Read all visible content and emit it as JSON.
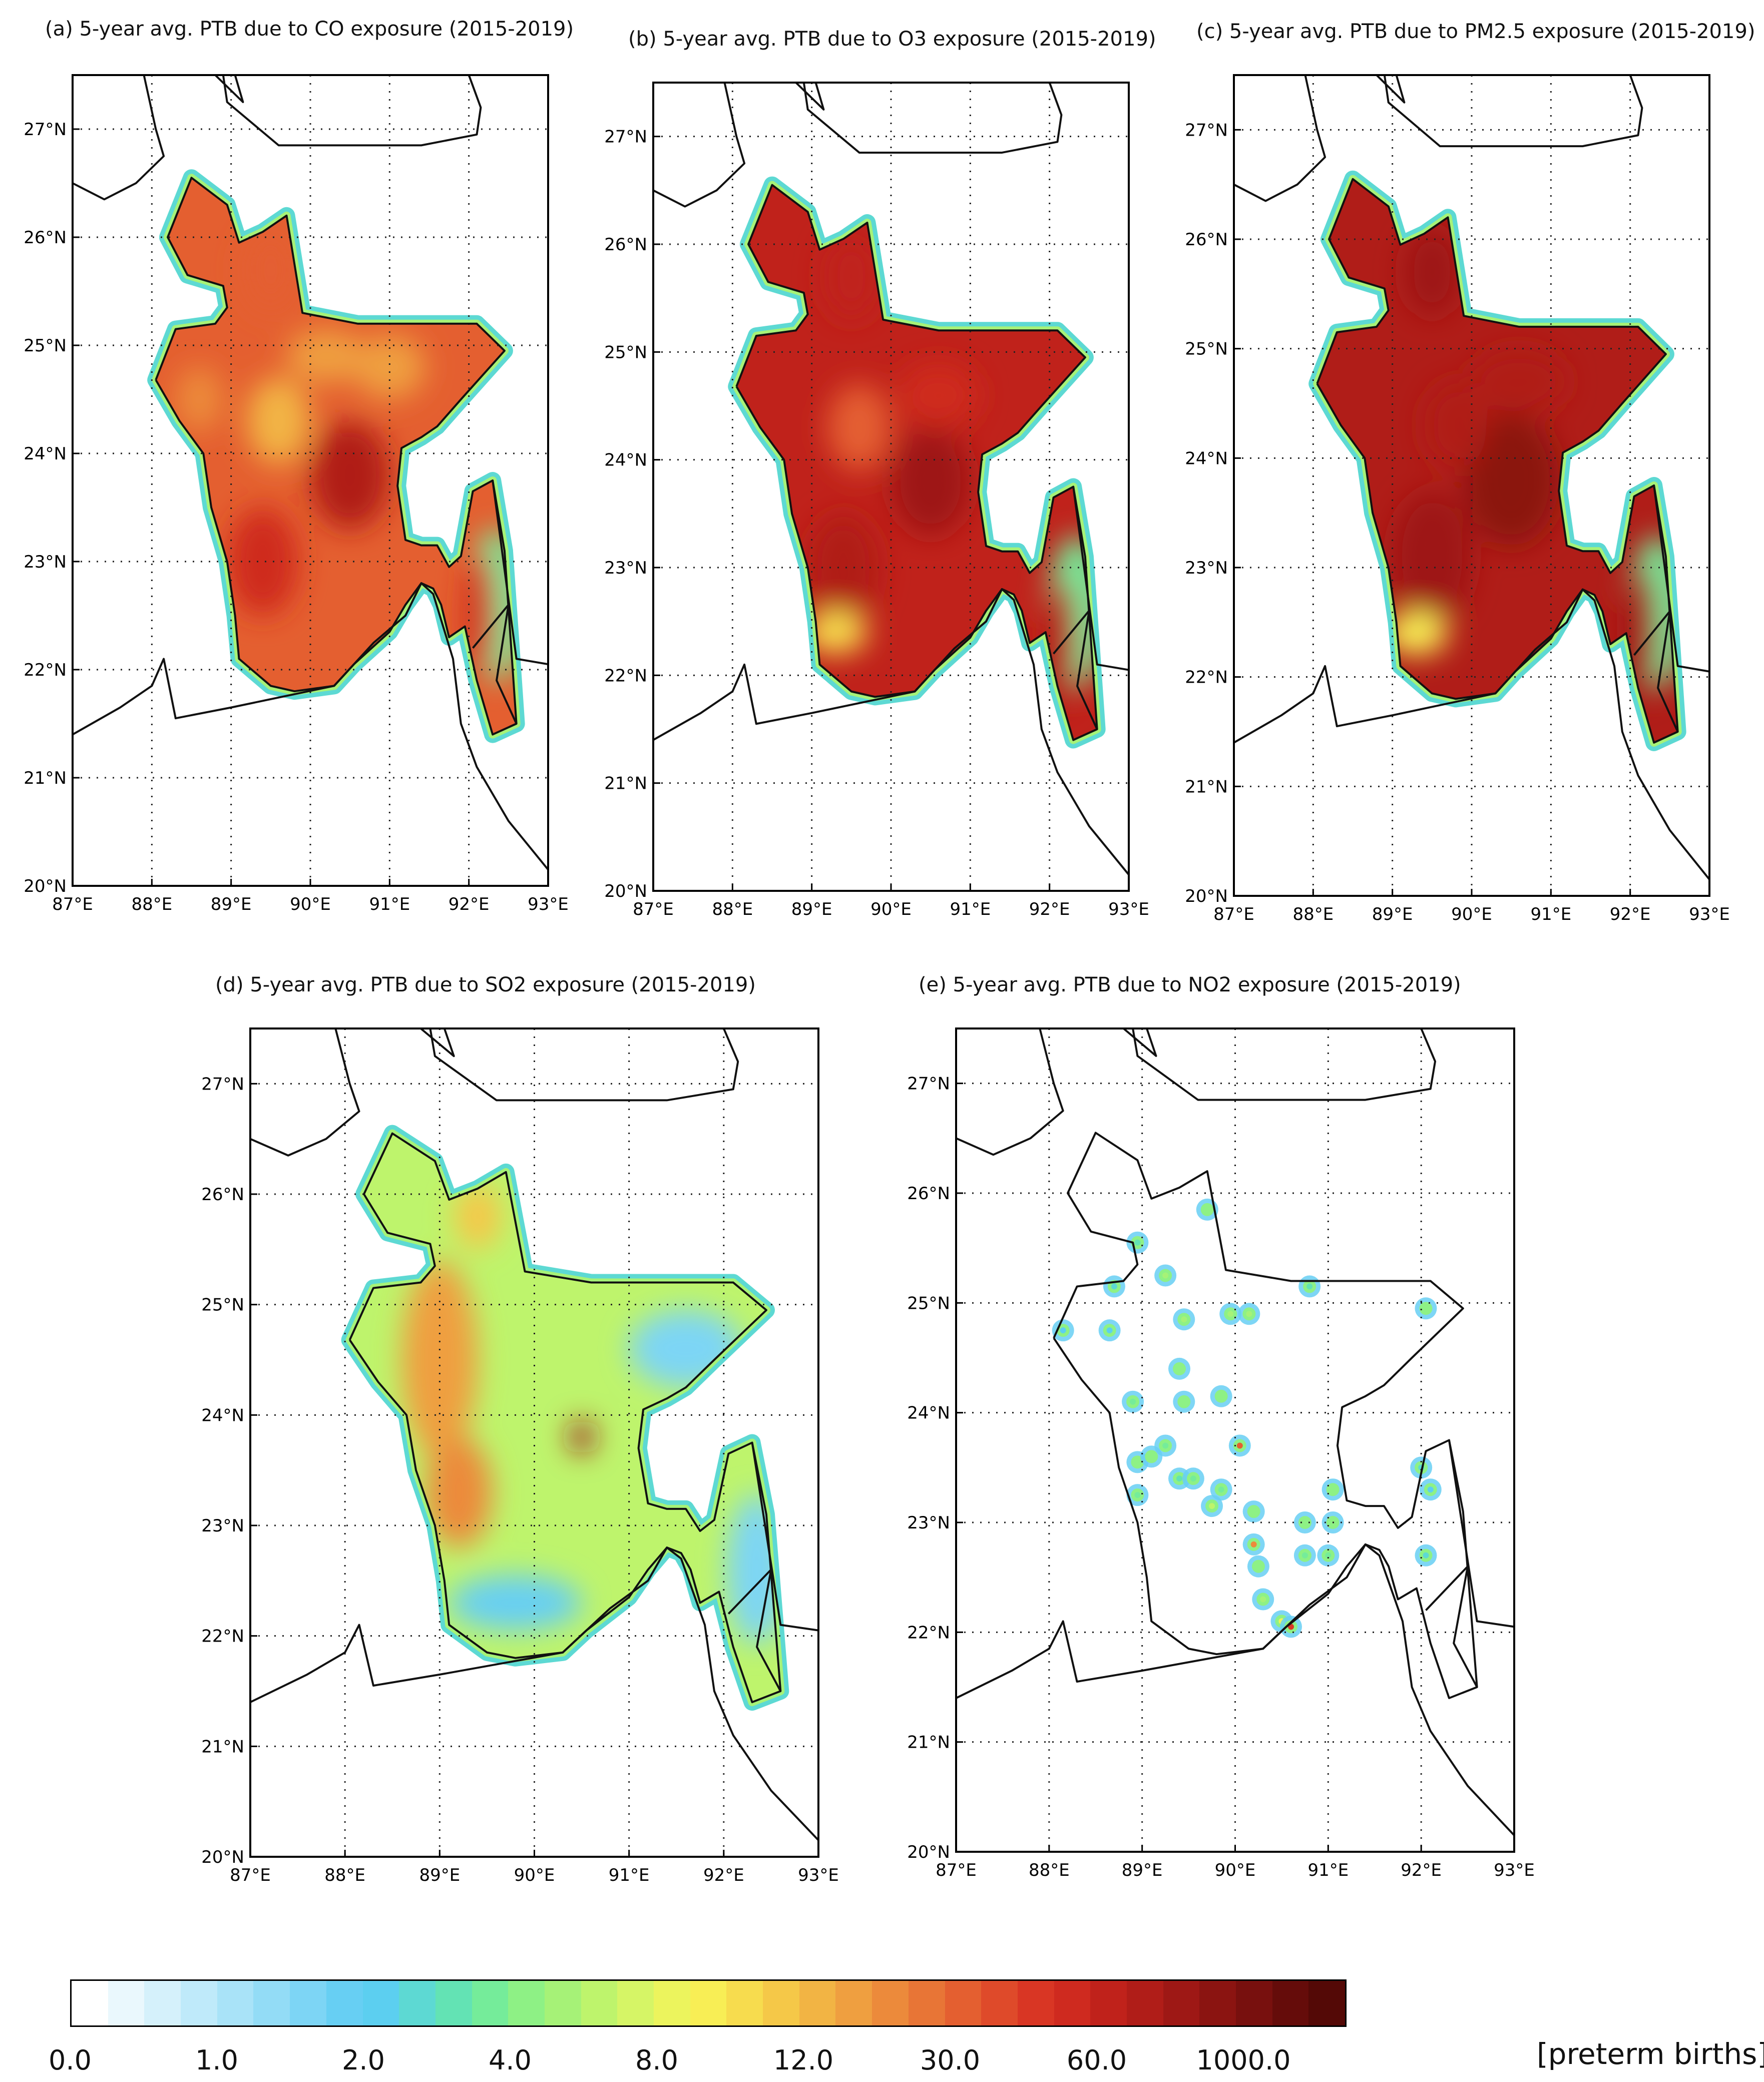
{
  "panels": [
    {
      "id": "a",
      "title": "(a) 5-year avg. PTB due to CO exposure (2015-2019)",
      "pollutant": "CO"
    },
    {
      "id": "b",
      "title": "(b) 5-year avg. PTB due to O3 exposure (2015-2019)",
      "pollutant": "O3"
    },
    {
      "id": "c",
      "title": "(c) 5-year avg. PTB due to PM2.5 exposure (2015-2019)",
      "pollutant": "PM2.5"
    },
    {
      "id": "d",
      "title": "(d) 5-year avg. PTB due to SO2 exposure (2015-2019)",
      "pollutant": "SO2"
    },
    {
      "id": "e",
      "title": "(e) 5-year avg. PTB due to NO2 exposure (2015-2019)",
      "pollutant": "NO2"
    }
  ],
  "axes": {
    "lon_ticks": [
      "87°E",
      "88°E",
      "89°E",
      "90°E",
      "91°E",
      "92°E",
      "93°E"
    ],
    "lat_ticks": [
      "20°N",
      "21°N",
      "22°N",
      "23°N",
      "24°N",
      "25°N",
      "26°N",
      "27°N"
    ],
    "lon_range": [
      87,
      93
    ],
    "lat_range": [
      20,
      27.5
    ],
    "grid": "dotted"
  },
  "colorbar": {
    "tick_labels": [
      "0.0",
      "1.0",
      "2.0",
      "4.0",
      "8.0",
      "12.0",
      "30.0",
      "60.0",
      "1000.0"
    ],
    "unit": "[preterm births]",
    "colors": [
      "#ffffff",
      "#eaf8fd",
      "#d5f1fb",
      "#bfeafa",
      "#a9e3f8",
      "#93dcf6",
      "#7dd5f5",
      "#67cff3",
      "#5ccff0",
      "#5dd9d3",
      "#63e3b4",
      "#75ec9a",
      "#8ef185",
      "#a6f277",
      "#bef46c",
      "#d6f566",
      "#ecf45d",
      "#f8ee55",
      "#f7dc4e",
      "#f5c848",
      "#f2b444",
      "#ef9f40",
      "#ec8a3b",
      "#e87536",
      "#e45f30",
      "#df4a2a",
      "#d93624",
      "#cf2a1f",
      "#c0221b",
      "#b01d18",
      "#9e1815",
      "#8b1411",
      "#78100e",
      "#650c0a",
      "#540906"
    ]
  }
}
